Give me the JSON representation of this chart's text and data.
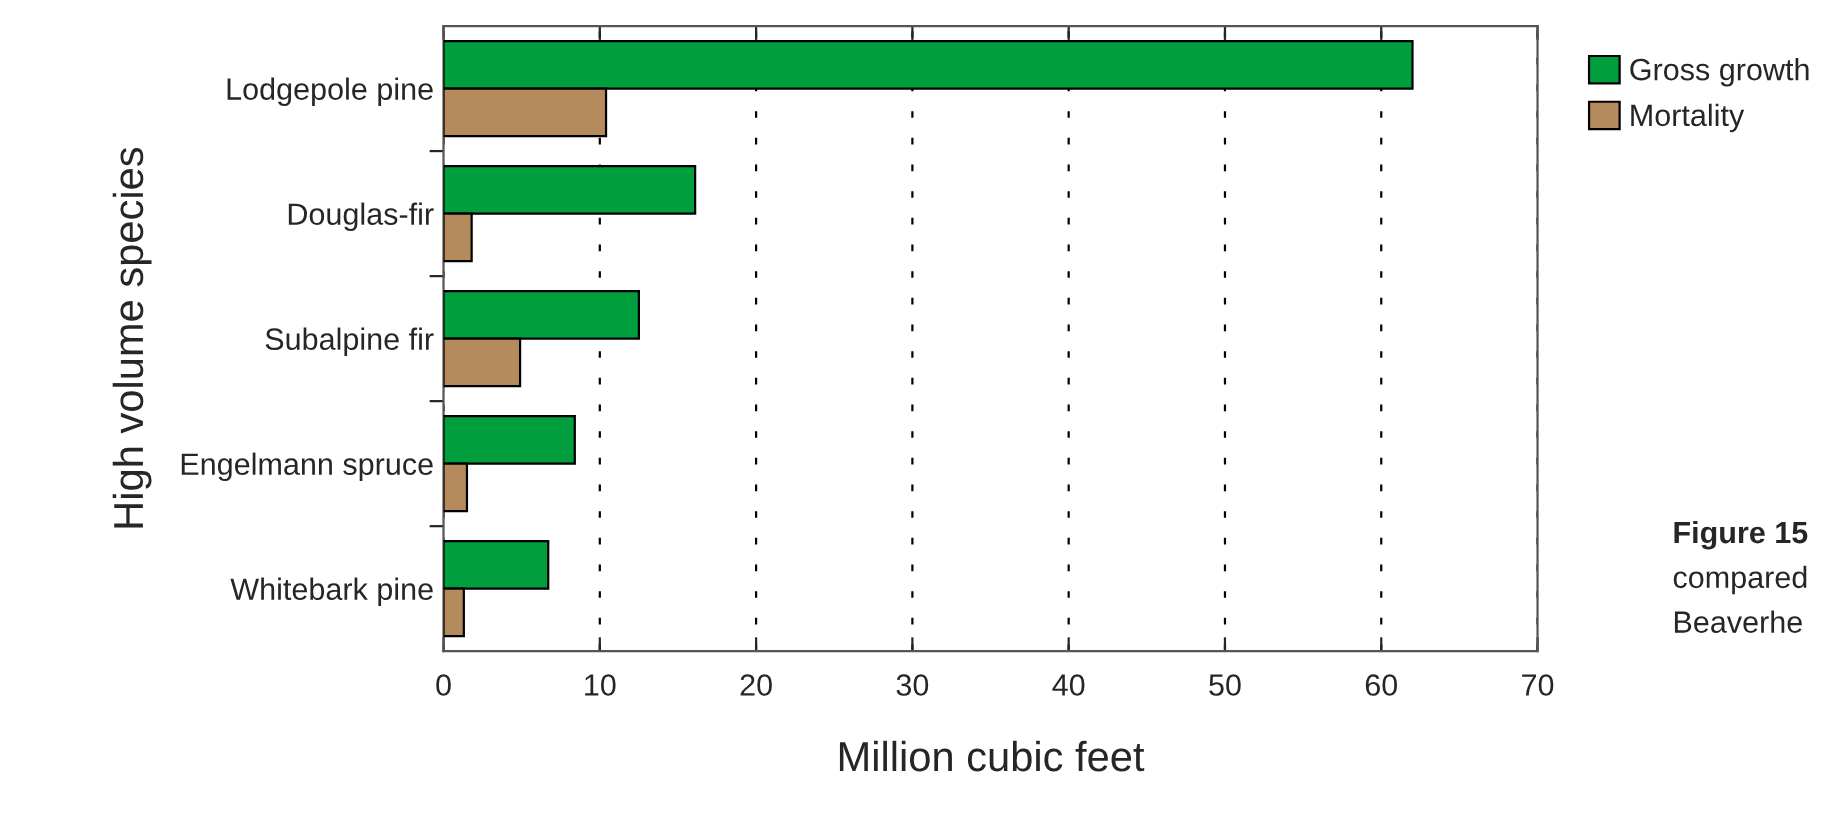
{
  "chart_data": {
    "type": "bar",
    "orientation": "horizontal",
    "categories": [
      "Lodgepole pine",
      "Douglas-fir",
      "Subalpine fir",
      "Engelmann spruce",
      "Whitebark pine"
    ],
    "series": [
      {
        "name": "Gross growth",
        "color": "#009e3d",
        "values": [
          62.0,
          16.1,
          12.5,
          8.4,
          6.7
        ]
      },
      {
        "name": "Mortality",
        "color": "#b58a5c",
        "values": [
          10.4,
          1.8,
          4.9,
          1.5,
          1.3
        ]
      }
    ],
    "xlabel": "Million cubic feet",
    "ylabel": "High volume species",
    "xlim": [
      0,
      70
    ],
    "xticks": [
      0,
      10,
      20,
      30,
      40,
      50,
      60,
      70
    ],
    "grid": "x",
    "legend": "top right",
    "annotations": [
      "Figure 15",
      "compared",
      "Beaverhe"
    ]
  }
}
